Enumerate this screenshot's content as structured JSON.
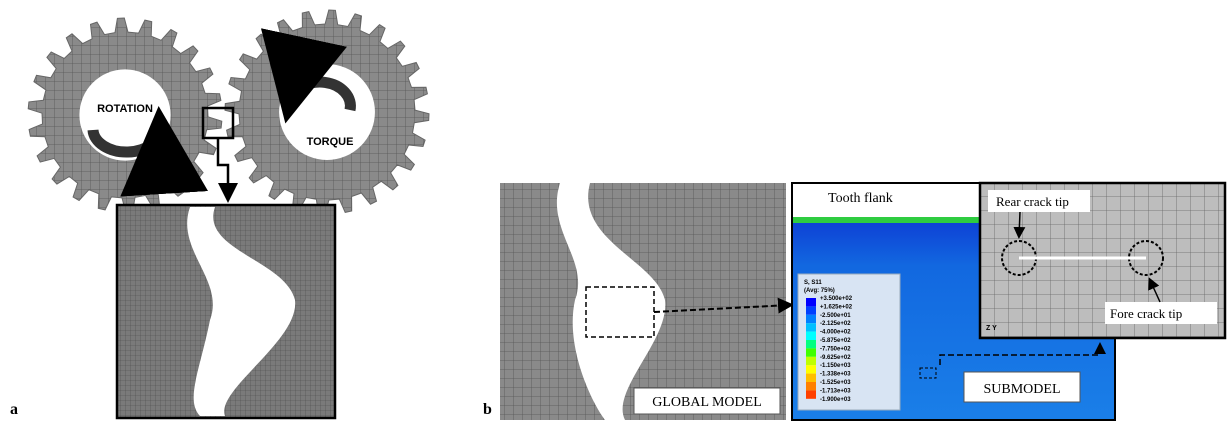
{
  "panel_a": {
    "label": "a",
    "rotation": "ROTATION",
    "torque": "TORQUE"
  },
  "panel_b": {
    "label": "b",
    "global_model": "GLOBAL MODEL",
    "submodel": "SUBMODEL",
    "tooth_flank": "Tooth flank",
    "rear_crack_tip": "Rear crack tip",
    "fore_crack_tip": "Fore crack tip",
    "axes": "Z Y",
    "legend": {
      "title": "S, S11",
      "subtitle": "(Avg: 75%)",
      "levels": [
        "+3.500e+02",
        "+1.625e+02",
        "-2.500e+01",
        "-2.125e+02",
        "-4.000e+02",
        "-5.875e+02",
        "-7.750e+02",
        "-9.625e+02",
        "-1.150e+03",
        "-1.338e+03",
        "-1.525e+03",
        "-1.713e+03",
        "-1.900e+03"
      ]
    }
  }
}
